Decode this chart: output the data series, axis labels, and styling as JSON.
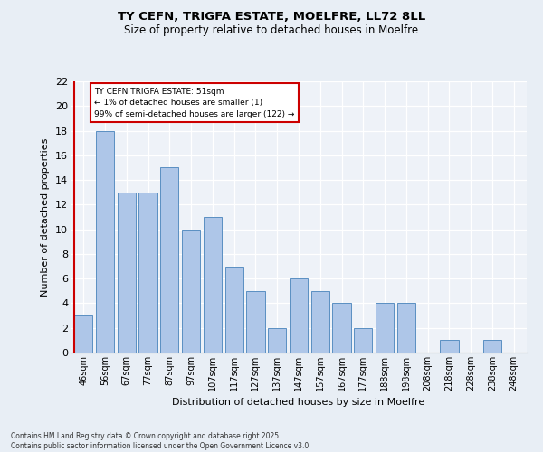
{
  "title_line1": "TY CEFN, TRIGFA ESTATE, MOELFRE, LL72 8LL",
  "title_line2": "Size of property relative to detached houses in Moelfre",
  "xlabel": "Distribution of detached houses by size in Moelfre",
  "ylabel": "Number of detached properties",
  "categories": [
    "46sqm",
    "56sqm",
    "67sqm",
    "77sqm",
    "87sqm",
    "97sqm",
    "107sqm",
    "117sqm",
    "127sqm",
    "137sqm",
    "147sqm",
    "157sqm",
    "167sqm",
    "177sqm",
    "188sqm",
    "198sqm",
    "208sqm",
    "218sqm",
    "228sqm",
    "238sqm",
    "248sqm"
  ],
  "values": [
    3,
    18,
    13,
    13,
    15,
    10,
    11,
    7,
    5,
    2,
    6,
    5,
    4,
    2,
    4,
    4,
    0,
    1,
    0,
    1,
    0
  ],
  "bar_color": "#aec6e8",
  "bar_edge_color": "#5a8fc2",
  "highlight_color": "#cc0000",
  "ylim": [
    0,
    22
  ],
  "yticks": [
    0,
    2,
    4,
    6,
    8,
    10,
    12,
    14,
    16,
    18,
    20,
    22
  ],
  "annotation_title": "TY CEFN TRIGFA ESTATE: 51sqm",
  "annotation_line1": "← 1% of detached houses are smaller (1)",
  "annotation_line2": "99% of semi-detached houses are larger (122) →",
  "annotation_box_color": "#ffffff",
  "annotation_border_color": "#cc0000",
  "footer_line1": "Contains HM Land Registry data © Crown copyright and database right 2025.",
  "footer_line2": "Contains public sector information licensed under the Open Government Licence v3.0.",
  "bg_color": "#e8eef5",
  "plot_bg_color": "#eef2f8"
}
